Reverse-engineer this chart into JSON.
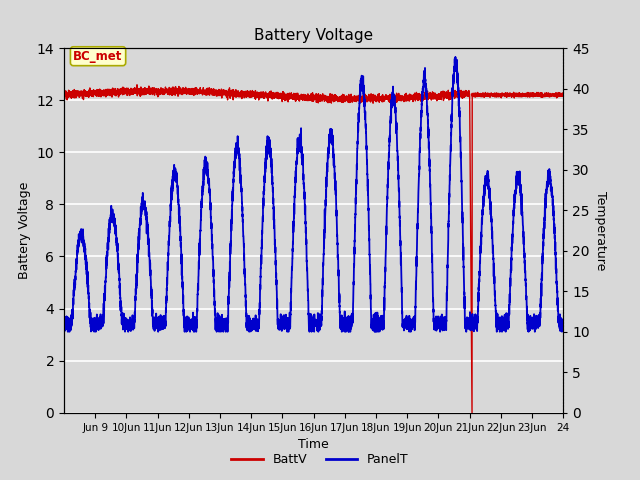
{
  "title": "Battery Voltage",
  "xlabel": "Time",
  "ylabel_left": "Battery Voltage",
  "ylabel_right": "Temperature",
  "ylim_left": [
    0,
    14
  ],
  "ylim_right": [
    0,
    45
  ],
  "yticks_left": [
    0,
    2,
    4,
    6,
    8,
    10,
    12,
    14
  ],
  "yticks_right": [
    0,
    5,
    10,
    15,
    20,
    25,
    30,
    35,
    40,
    45
  ],
  "xlim": [
    8,
    24
  ],
  "xtick_positions": [
    9,
    10,
    11,
    12,
    13,
    14,
    15,
    16,
    17,
    18,
    19,
    20,
    21,
    22,
    23,
    24
  ],
  "xtick_labels": [
    "Jun 9",
    "10Jun",
    "11Jun",
    "12Jun",
    "13Jun",
    "14Jun",
    "15Jun",
    "16Jun",
    "17Jun",
    "18Jun",
    "19Jun",
    "20Jun",
    "21Jun",
    "22Jun",
    "23Jun",
    "24"
  ],
  "bg_color": "#d8d8d8",
  "plot_bg_color": "#d8d8d8",
  "grid_color": "#ffffff",
  "batt_color": "#cc0000",
  "panel_color": "#0000cc",
  "legend_batt": "BattV",
  "legend_panel": "PanelT",
  "annotation_text": "BC_met",
  "annotation_color": "#cc0000",
  "annotation_bg": "#ffffcc",
  "annotation_border": "#aaaa00",
  "figsize": [
    6.4,
    4.8
  ],
  "dpi": 100
}
